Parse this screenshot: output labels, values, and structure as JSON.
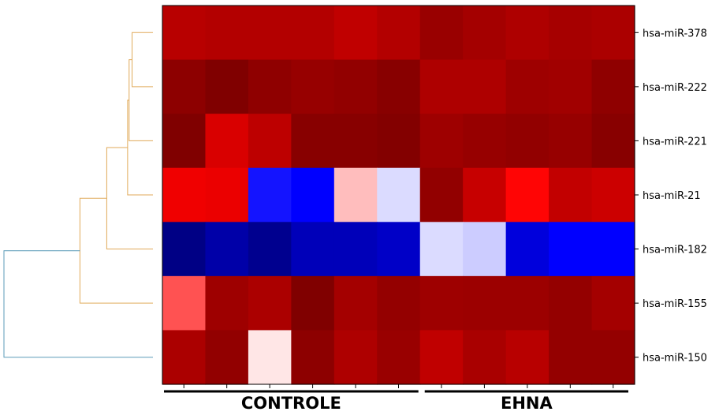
{
  "chart_data": {
    "type": "heatmap",
    "rows": [
      "hsa-miR-378",
      "hsa-miR-222",
      "hsa-miR-221",
      "hsa-miR-21",
      "hsa-miR-182",
      "hsa-miR-155",
      "hsa-miR-150"
    ],
    "groups": [
      {
        "label": "CONTROLE",
        "columns": 6
      },
      {
        "label": "EHNA",
        "columns": 5
      }
    ],
    "colormap": "seismic",
    "values": [
      [
        0.78,
        0.8,
        0.8,
        0.8,
        0.75,
        0.8,
        0.9,
        0.86,
        0.82,
        0.85,
        0.83
      ],
      [
        0.95,
        1.0,
        0.94,
        0.91,
        0.93,
        0.97,
        0.82,
        0.82,
        0.88,
        0.87,
        0.94
      ],
      [
        1.0,
        0.65,
        0.76,
        0.97,
        0.97,
        0.99,
        0.88,
        0.91,
        0.93,
        0.91,
        0.97
      ],
      [
        0.56,
        0.58,
        -0.46,
        -0.5,
        0.13,
        -0.07,
        0.93,
        0.72,
        0.49,
        0.74,
        0.7
      ],
      [
        -0.85,
        -0.75,
        -0.82,
        -0.7,
        -0.7,
        -0.66,
        -0.07,
        -0.1,
        -0.6,
        -0.5,
        -0.5
      ],
      [
        0.34,
        0.88,
        0.83,
        1.0,
        0.86,
        0.92,
        0.88,
        0.89,
        0.89,
        0.92,
        0.86
      ],
      [
        0.83,
        0.93,
        0.05,
        0.95,
        0.82,
        0.9,
        0.75,
        0.84,
        0.78,
        0.92,
        0.92
      ]
    ],
    "dendrogram": {
      "side": "left",
      "leaf_order": [
        0,
        1,
        2,
        3,
        4,
        5,
        6
      ],
      "merges": [
        {
          "left": 0,
          "right": 1,
          "height": 0.14
        },
        {
          "left": 7,
          "right": 2,
          "height": 0.16
        },
        {
          "left": 8,
          "right": 3,
          "height": 0.17
        },
        {
          "left": 9,
          "right": 4,
          "height": 0.31
        },
        {
          "left": 10,
          "right": 5,
          "height": 0.49
        },
        {
          "left": 11,
          "right": 6,
          "height": 1.0
        }
      ],
      "colors": [
        "#e0aa5a",
        "#e0aa5a",
        "#e0aa5a",
        "#e0aa5a",
        "#e0aa5a",
        "#5b9bb8"
      ]
    }
  }
}
